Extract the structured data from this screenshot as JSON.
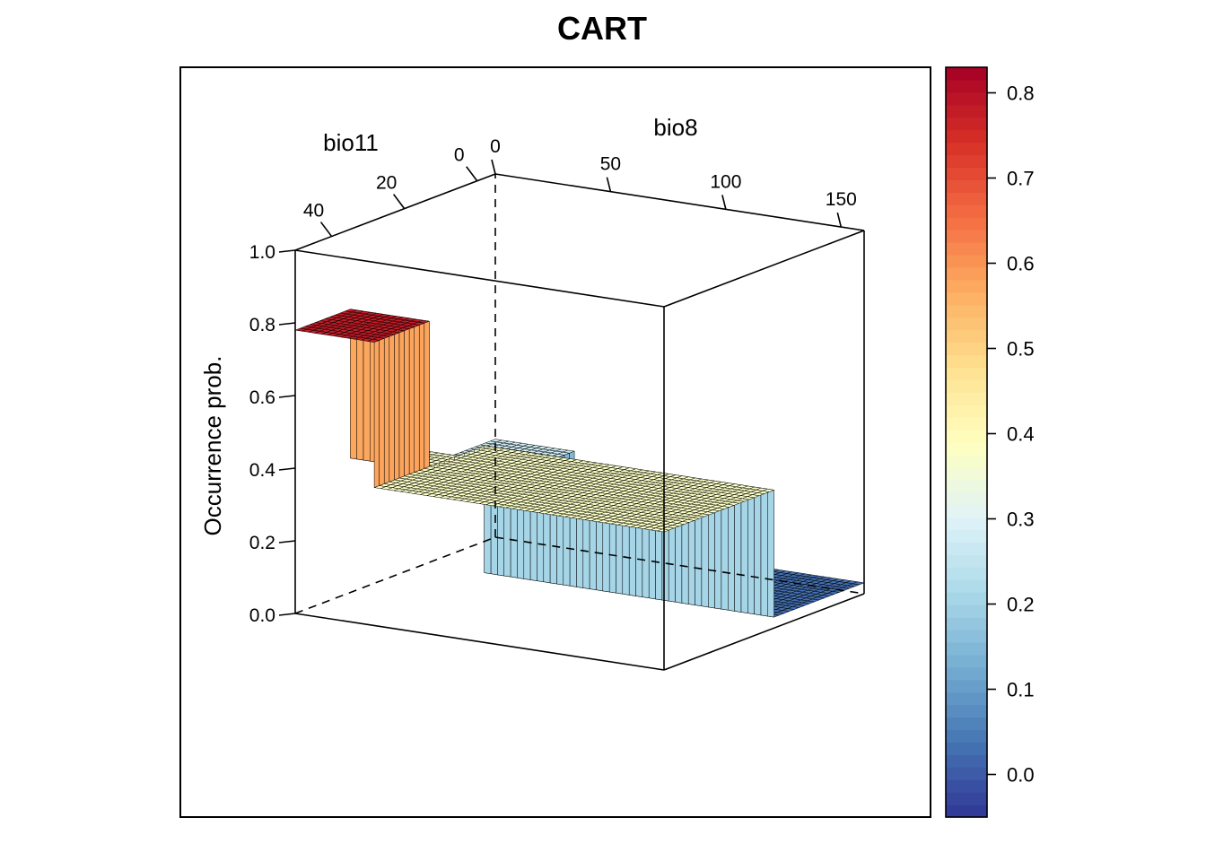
{
  "chart_data": {
    "type": "surface",
    "title": "CART",
    "xlabel": "bio8",
    "ylabel": "bio11",
    "zlabel": "Occurrence prob.",
    "xticks": [
      "0",
      "50",
      "100",
      "150"
    ],
    "yticks": [
      "0",
      "20",
      "40"
    ],
    "zticks": [
      "0.0",
      "0.2",
      "0.4",
      "0.6",
      "0.8",
      "1.0"
    ],
    "xlim": [
      0,
      160
    ],
    "ylim": [
      -5,
      50
    ],
    "zlim": [
      0,
      1
    ],
    "surface_levels": [
      {
        "region": "bio8 low, bio11 high",
        "value": 0.78
      },
      {
        "region": "bio8 low, bio11 mid",
        "value": 0.37
      },
      {
        "region": "bio8 low, bio11 low",
        "value": 0.27
      },
      {
        "region": "bio8 high, bio11 high",
        "value": 0.38
      },
      {
        "region": "bio8 high, bio11 low",
        "value": 0.03
      }
    ],
    "colorbar": {
      "ticks": [
        "0.0",
        "0.1",
        "0.2",
        "0.3",
        "0.4",
        "0.5",
        "0.6",
        "0.7",
        "0.8"
      ],
      "min": -0.05,
      "max": 0.83,
      "palette": [
        "#313695",
        "#4575b4",
        "#74add1",
        "#abd9e9",
        "#e0f3f8",
        "#ffffbf",
        "#fee090",
        "#fdae61",
        "#f46d43",
        "#d73027",
        "#a50026"
      ]
    },
    "grid": false,
    "legend_position": "right"
  }
}
